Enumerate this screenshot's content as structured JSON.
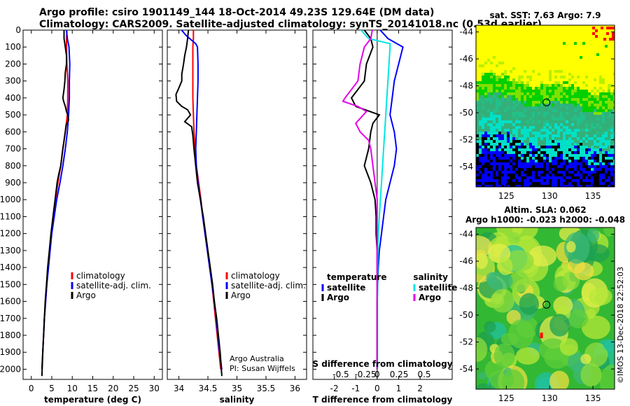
{
  "header": {
    "line1": "Argo profile: csiro 1901149_144 18-Oct-2014 49.23S 129.64E (DM data)",
    "line2": "Climatology: CARS2009. Satellite-adjusted climatology: synTS_20141018.nc (0.53d earlier)"
  },
  "credit": {
    "line1": "Argo Australia",
    "line2": "PI: Susan Wijffels",
    "stamp": "©IMOS 13-Dec-2018 22:52:03"
  },
  "colors": {
    "climatology": "#ff0000",
    "satellite": "#0000ff",
    "argo": "#000000",
    "salinity_satellite": "#00e5e5",
    "salinity_argo": "#e600e6"
  },
  "chart_data": [
    {
      "type": "line",
      "name": "temperature-profile",
      "xlabel": "temperature (deg C)",
      "ylabel": "",
      "xlim": [
        -2,
        32
      ],
      "ylim": [
        2060,
        0
      ],
      "xticks": [
        0,
        5,
        10,
        15,
        20,
        25,
        30
      ],
      "yticks": [
        0,
        100,
        200,
        300,
        400,
        500,
        600,
        700,
        800,
        900,
        1000,
        1100,
        1200,
        1300,
        1400,
        1500,
        1600,
        1700,
        1800,
        1900,
        2000
      ],
      "legend": [
        "climatology",
        "satellite-adj. clim.",
        "Argo"
      ],
      "series": [
        {
          "name": "climatology",
          "color": "#ff0000",
          "points": [
            [
              8.7,
              0
            ],
            [
              8.6,
              50
            ],
            [
              8.6,
              100
            ],
            [
              8.7,
              200
            ],
            [
              8.9,
              300
            ],
            [
              8.9,
              400
            ],
            [
              8.8,
              500
            ],
            [
              8.3,
              600
            ],
            [
              7.7,
              700
            ],
            [
              7.2,
              800
            ],
            [
              6.5,
              900
            ],
            [
              5.9,
              1000
            ],
            [
              5.4,
              1100
            ],
            [
              4.9,
              1200
            ],
            [
              4.5,
              1300
            ],
            [
              4.1,
              1400
            ],
            [
              3.8,
              1500
            ],
            [
              3.5,
              1600
            ],
            [
              3.2,
              1700
            ],
            [
              3.0,
              1800
            ],
            [
              2.8,
              1900
            ],
            [
              2.6,
              2000
            ]
          ]
        },
        {
          "name": "satellite-adj. clim.",
          "color": "#0000ff",
          "points": [
            [
              8.6,
              0
            ],
            [
              8.8,
              50
            ],
            [
              9.2,
              100
            ],
            [
              9.4,
              200
            ],
            [
              9.3,
              300
            ],
            [
              9.3,
              400
            ],
            [
              9.1,
              500
            ],
            [
              8.8,
              600
            ],
            [
              8.3,
              700
            ],
            [
              7.7,
              800
            ],
            [
              7.0,
              900
            ],
            [
              6.2,
              1000
            ],
            [
              5.6,
              1100
            ],
            [
              5.0,
              1200
            ],
            [
              4.6,
              1300
            ],
            [
              4.2,
              1400
            ],
            [
              3.8,
              1500
            ],
            [
              3.5,
              1600
            ],
            [
              3.2,
              1700
            ],
            [
              3.0,
              1800
            ],
            [
              2.8,
              1900
            ],
            [
              2.6,
              2000
            ]
          ]
        },
        {
          "name": "Argo",
          "color": "#000000",
          "points": [
            [
              8.0,
              0
            ],
            [
              8.0,
              50
            ],
            [
              8.3,
              100
            ],
            [
              8.6,
              150
            ],
            [
              8.6,
              200
            ],
            [
              8.3,
              250
            ],
            [
              8.2,
              300
            ],
            [
              8.0,
              350
            ],
            [
              7.7,
              400
            ],
            [
              7.9,
              420
            ],
            [
              8.3,
              450
            ],
            [
              8.6,
              480
            ],
            [
              8.9,
              500
            ],
            [
              9.1,
              530
            ],
            [
              8.5,
              560
            ],
            [
              8.3,
              600
            ],
            [
              7.7,
              700
            ],
            [
              7.2,
              800
            ],
            [
              6.7,
              850
            ],
            [
              6.3,
              900
            ],
            [
              5.8,
              1000
            ],
            [
              5.3,
              1100
            ],
            [
              4.8,
              1200
            ],
            [
              4.4,
              1300
            ],
            [
              4.0,
              1400
            ],
            [
              3.7,
              1500
            ],
            [
              3.4,
              1600
            ],
            [
              3.2,
              1700
            ],
            [
              3.0,
              1800
            ],
            [
              2.8,
              1900
            ],
            [
              2.6,
              2040
            ]
          ]
        }
      ]
    },
    {
      "type": "line",
      "name": "salinity-profile",
      "xlabel": "salinity",
      "ylabel": "",
      "xlim": [
        33.8,
        36.2
      ],
      "ylim": [
        2060,
        0
      ],
      "xticks": [
        34,
        34.5,
        35,
        35.5,
        36
      ],
      "legend": [
        "climatology",
        "satellite-adj. clim.",
        "Argo"
      ],
      "series": [
        {
          "name": "climatology",
          "color": "#ff0000",
          "points": [
            [
              34.25,
              -20
            ],
            [
              34.25,
              50
            ],
            [
              34.24,
              100
            ],
            [
              34.24,
              200
            ],
            [
              34.24,
              300
            ],
            [
              34.24,
              400
            ],
            [
              34.25,
              500
            ],
            [
              34.26,
              600
            ],
            [
              34.28,
              700
            ],
            [
              34.3,
              800
            ],
            [
              34.34,
              900
            ],
            [
              34.38,
              1000
            ],
            [
              34.41,
              1100
            ],
            [
              34.45,
              1200
            ],
            [
              34.49,
              1300
            ],
            [
              34.53,
              1400
            ],
            [
              34.57,
              1500
            ],
            [
              34.6,
              1600
            ],
            [
              34.63,
              1700
            ],
            [
              34.66,
              1800
            ],
            [
              34.69,
              1900
            ],
            [
              34.72,
              2000
            ]
          ]
        },
        {
          "name": "satellite-adj. clim.",
          "color": "#0000ff",
          "points": [
            [
              34.0,
              -20
            ],
            [
              34.12,
              30
            ],
            [
              34.22,
              60
            ],
            [
              34.29,
              80
            ],
            [
              34.32,
              100
            ],
            [
              34.33,
              200
            ],
            [
              34.33,
              300
            ],
            [
              34.32,
              400
            ],
            [
              34.31,
              500
            ],
            [
              34.3,
              600
            ],
            [
              34.29,
              700
            ],
            [
              34.3,
              800
            ],
            [
              34.33,
              900
            ],
            [
              34.37,
              1000
            ],
            [
              34.41,
              1100
            ],
            [
              34.45,
              1200
            ],
            [
              34.49,
              1300
            ],
            [
              34.53,
              1400
            ],
            [
              34.57,
              1500
            ],
            [
              34.61,
              1600
            ],
            [
              34.64,
              1700
            ],
            [
              34.67,
              1800
            ],
            [
              34.7,
              1900
            ],
            [
              34.74,
              2000
            ]
          ]
        },
        {
          "name": "Argo",
          "color": "#000000",
          "points": [
            [
              34.17,
              -20
            ],
            [
              34.15,
              50
            ],
            [
              34.13,
              100
            ],
            [
              34.1,
              150
            ],
            [
              34.08,
              200
            ],
            [
              34.05,
              260
            ],
            [
              34.05,
              300
            ],
            [
              34.0,
              340
            ],
            [
              33.95,
              380
            ],
            [
              33.96,
              420
            ],
            [
              34.05,
              450
            ],
            [
              34.15,
              470
            ],
            [
              34.2,
              500
            ],
            [
              34.1,
              540
            ],
            [
              34.22,
              570
            ],
            [
              34.24,
              620
            ],
            [
              34.26,
              700
            ],
            [
              34.29,
              800
            ],
            [
              34.32,
              900
            ],
            [
              34.37,
              1000
            ],
            [
              34.42,
              1100
            ],
            [
              34.46,
              1200
            ],
            [
              34.5,
              1300
            ],
            [
              34.54,
              1400
            ],
            [
              34.58,
              1500
            ],
            [
              34.61,
              1600
            ],
            [
              34.65,
              1700
            ],
            [
              34.68,
              1800
            ],
            [
              34.71,
              1900
            ],
            [
              34.74,
              2040
            ]
          ]
        }
      ]
    },
    {
      "type": "line",
      "name": "difference-profile",
      "xlabel": "T difference from climatology",
      "ylabel": "",
      "xlim": [
        -3,
        3.5
      ],
      "ylim": [
        2060,
        0
      ],
      "xticks": [
        -2,
        -1,
        0,
        1,
        2
      ],
      "secondary_xlabel": "S difference from climatology",
      "secondary_xticks": [
        "-0.5",
        "-0.25",
        "0",
        "0.25",
        "0.5"
      ],
      "legend_groups": [
        {
          "title": "temperature",
          "items": [
            "satellite",
            "Argo"
          ]
        },
        {
          "title": "salinity",
          "items": [
            "satellite",
            "Argo"
          ]
        }
      ],
      "series": [
        {
          "name": "temperature satellite",
          "color": "#0000ff",
          "points": [
            [
              0.0,
              -20
            ],
            [
              0.5,
              50
            ],
            [
              1.2,
              100
            ],
            [
              1.0,
              200
            ],
            [
              0.8,
              300
            ],
            [
              0.7,
              400
            ],
            [
              0.6,
              500
            ],
            [
              0.8,
              600
            ],
            [
              0.9,
              700
            ],
            [
              0.8,
              800
            ],
            [
              0.6,
              900
            ],
            [
              0.4,
              1000
            ],
            [
              0.3,
              1100
            ],
            [
              0.2,
              1200
            ],
            [
              0.1,
              1300
            ],
            [
              0.05,
              1400
            ],
            [
              0.02,
              1500
            ],
            [
              0.0,
              1600
            ],
            [
              0.0,
              2000
            ]
          ]
        },
        {
          "name": "temperature Argo",
          "color": "#000000",
          "points": [
            [
              -0.6,
              0
            ],
            [
              -0.3,
              50
            ],
            [
              -0.2,
              100
            ],
            [
              -0.5,
              200
            ],
            [
              -0.6,
              300
            ],
            [
              -0.9,
              350
            ],
            [
              -1.2,
              400
            ],
            [
              -1.0,
              450
            ],
            [
              0.1,
              500
            ],
            [
              -0.2,
              550
            ],
            [
              -0.3,
              600
            ],
            [
              -0.4,
              700
            ],
            [
              -0.6,
              800
            ],
            [
              -0.3,
              900
            ],
            [
              -0.1,
              1000
            ],
            [
              -0.05,
              1100
            ],
            [
              -0.05,
              1200
            ],
            [
              0.0,
              1300
            ],
            [
              0.0,
              1400
            ],
            [
              0.0,
              2000
            ]
          ]
        },
        {
          "name": "salinity satellite",
          "color": "#00e5e5",
          "points": [
            [
              -0.9,
              -20
            ],
            [
              -0.4,
              50
            ],
            [
              0.6,
              80
            ],
            [
              0.6,
              100
            ],
            [
              0.55,
              200
            ],
            [
              0.5,
              300
            ],
            [
              0.45,
              400
            ],
            [
              0.4,
              500
            ],
            [
              0.35,
              600
            ],
            [
              0.3,
              700
            ],
            [
              0.25,
              800
            ],
            [
              0.2,
              900
            ],
            [
              0.15,
              1000
            ],
            [
              0.1,
              1100
            ],
            [
              0.05,
              1200
            ],
            [
              0.03,
              1300
            ],
            [
              0.02,
              1400
            ],
            [
              0.01,
              1600
            ],
            [
              0.01,
              2000
            ]
          ]
        },
        {
          "name": "salinity Argo",
          "color": "#e600e6",
          "points": [
            [
              -0.2,
              -20
            ],
            [
              -0.3,
              50
            ],
            [
              -0.6,
              100
            ],
            [
              -0.8,
              200
            ],
            [
              -0.9,
              300
            ],
            [
              -1.5,
              400
            ],
            [
              -1.6,
              420
            ],
            [
              -0.9,
              450
            ],
            [
              -0.5,
              480
            ],
            [
              -1.0,
              550
            ],
            [
              -0.8,
              600
            ],
            [
              -0.4,
              650
            ],
            [
              -0.3,
              700
            ],
            [
              -0.2,
              800
            ],
            [
              -0.1,
              900
            ],
            [
              0.0,
              1000
            ],
            [
              0.0,
              2000
            ]
          ]
        }
      ]
    },
    {
      "type": "heatmap",
      "name": "sst-map",
      "title": "sat. SST: 7.63 Argo: 7.9",
      "xlim": [
        121.5,
        137.5
      ],
      "ylim": [
        -55.5,
        -43.5
      ],
      "xticks": [
        125,
        130,
        135
      ],
      "yticks": [
        -44,
        -46,
        -48,
        -50,
        -52,
        -54
      ],
      "marker": {
        "lon": 129.64,
        "lat": -49.23
      }
    },
    {
      "type": "heatmap",
      "name": "sla-map",
      "title": "Altim. SLA: 0.062",
      "subtitle": "Argo h1000: -0.023 h2000: -0.048",
      "xlim": [
        121.5,
        137.5
      ],
      "ylim": [
        -55.5,
        -43.5
      ],
      "xticks": [
        125,
        130,
        135
      ],
      "yticks": [
        -44,
        -46,
        -48,
        -50,
        -52,
        -54
      ],
      "marker": {
        "lon": 129.64,
        "lat": -49.23
      }
    }
  ]
}
